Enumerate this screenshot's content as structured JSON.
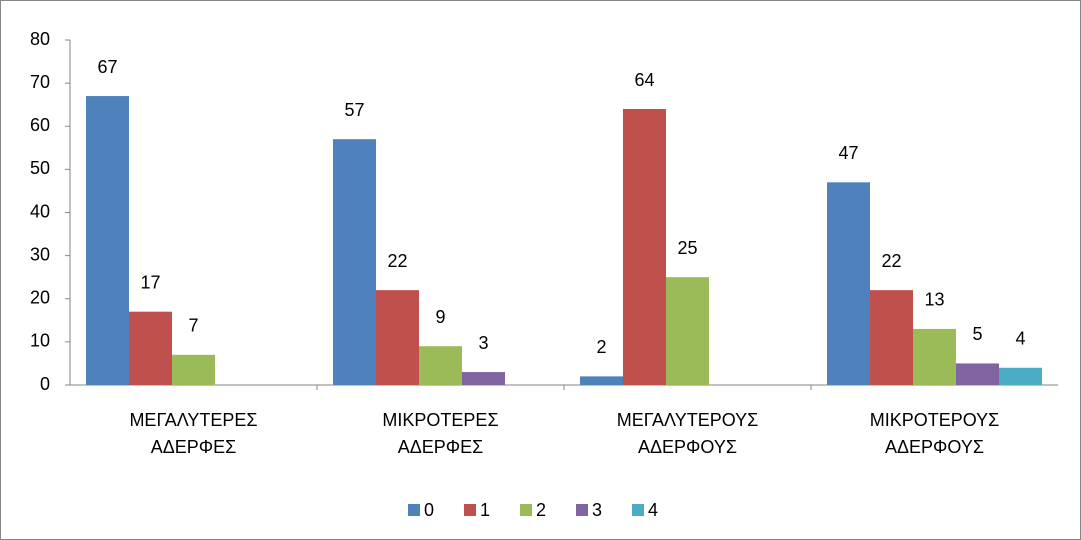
{
  "chart_data": {
    "type": "bar",
    "categories": [
      "ΜΕΓΑΛΥΤΕΡΕΣ ΑΔΕΡΦΕΣ",
      "ΜΙΚΡΟΤΕΡΕΣ ΑΔΕΡΦΕΣ",
      "ΜΕΓΑΛΥΤΕΡΟΥΣ ΑΔΕΡΦΟΥΣ",
      "ΜΙΚΡΟΤΕΡΟΥΣ ΑΔΕΡΦΟΥΣ"
    ],
    "series": [
      {
        "name": "0",
        "color": "#4f81bd",
        "values": [
          67,
          57,
          2,
          47
        ]
      },
      {
        "name": "1",
        "color": "#c0504d",
        "values": [
          17,
          22,
          64,
          22
        ]
      },
      {
        "name": "2",
        "color": "#9bbb59",
        "values": [
          7,
          9,
          25,
          13
        ]
      },
      {
        "name": "3",
        "color": "#8064a2",
        "values": [
          null,
          3,
          null,
          5
        ]
      },
      {
        "name": "4",
        "color": "#4bacc6",
        "values": [
          null,
          null,
          null,
          4
        ]
      }
    ],
    "ylim": [
      0,
      80
    ],
    "yticks": [
      0,
      10,
      20,
      30,
      40,
      50,
      60,
      70,
      80
    ],
    "grid": false,
    "legend": "bottom"
  }
}
